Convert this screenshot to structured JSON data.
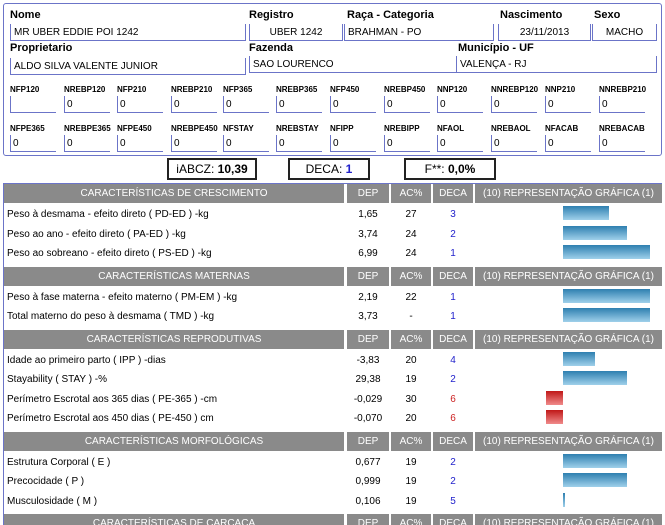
{
  "animal": {
    "nome_label": "Nome",
    "nome": "MR UBER EDDIE POI 1242",
    "registro_label": "Registro",
    "registro": "UBER 1242",
    "raca_label": "Raça - Categoria",
    "raca": "BRAHMAN - PO",
    "nascimento_label": "Nascimento",
    "nascimento": "23/11/2013",
    "sexo_label": "Sexo",
    "sexo": "MACHO",
    "proprietario_label": "Proprietario",
    "proprietario": "ALDO SILVA VALENTE JUNIOR",
    "fazenda_label": "Fazenda",
    "fazenda": "SAO LOURENCO",
    "municipio_label": "Município - UF",
    "municipio": "VALENÇA - RJ"
  },
  "nf_row1": [
    {
      "label": "NFP120",
      "value": ""
    },
    {
      "label": "NREBP120",
      "value": "0"
    },
    {
      "label": "NFP210",
      "value": "0"
    },
    {
      "label": "NREBP210",
      "value": "0"
    },
    {
      "label": "NFP365",
      "value": "0"
    },
    {
      "label": "NREBP365",
      "value": "0"
    },
    {
      "label": "NFP450",
      "value": "0"
    },
    {
      "label": "NREBP450",
      "value": "0"
    },
    {
      "label": "NNP120",
      "value": "0"
    },
    {
      "label": "NNREBP120",
      "value": "0"
    },
    {
      "label": "NNP210",
      "value": "0"
    },
    {
      "label": "NNREBP210",
      "value": "0"
    }
  ],
  "nf_row2": [
    {
      "label": "NFPE365",
      "value": "0"
    },
    {
      "label": "NREBPE365",
      "value": "0"
    },
    {
      "label": "NFPE450",
      "value": "0"
    },
    {
      "label": "NREBPE450",
      "value": "0"
    },
    {
      "label": "NFSTAY",
      "value": "0"
    },
    {
      "label": "NREBSTAY",
      "value": "0"
    },
    {
      "label": "NFIPP",
      "value": "0"
    },
    {
      "label": "NREBIPP",
      "value": "0"
    },
    {
      "label": "NFAOL",
      "value": "0"
    },
    {
      "label": "NREBAOL",
      "value": "0"
    },
    {
      "label": "NFACAB",
      "value": "0"
    },
    {
      "label": "NREBACAB",
      "value": "0"
    }
  ],
  "summary": {
    "iabcz_label": "iABCZ:",
    "iabcz": "10,39",
    "deca_label": "DECA:",
    "deca": "1",
    "f_label": "F**:",
    "f": "0,0%"
  },
  "columns": {
    "dep": "DEP",
    "ac": "AC%",
    "deca": "DECA",
    "graph": "(10) REPRESENTAÇÃO GRÁFICA (1)"
  },
  "sections": [
    {
      "title": "CARACTERÍSTICAS DE CRESCIMENTO",
      "rows": [
        {
          "name": "Peso à desmama - efeito direto ( PD-ED ) -kg",
          "dep": "1,65",
          "ac": "27",
          "deca": "3",
          "bar": 0.5
        },
        {
          "name": "Peso ao ano - efeito direto ( PA-ED ) -kg",
          "dep": "3,74",
          "ac": "24",
          "deca": "2",
          "bar": 0.7
        },
        {
          "name": "Peso ao sobreano - efeito direto ( PS-ED ) -kg",
          "dep": "6,99",
          "ac": "24",
          "deca": "1",
          "bar": 0.95
        }
      ]
    },
    {
      "title": "CARACTERÍSTICAS MATERNAS",
      "rows": [
        {
          "name": "Peso à fase materna - efeito materno ( PM-EM ) -kg",
          "dep": "2,19",
          "ac": "22",
          "deca": "1",
          "bar": 0.95
        },
        {
          "name": "Total materno do peso à desmama ( TMD ) -kg",
          "dep": "3,73",
          "ac": "-",
          "deca": "1",
          "bar": 0.95
        }
      ]
    },
    {
      "title": "CARACTERÍSTICAS REPRODUTIVAS",
      "rows": [
        {
          "name": "Idade ao primeiro parto ( IPP ) -dias",
          "dep": "-3,83",
          "ac": "20",
          "deca": "4",
          "bar": 0.35
        },
        {
          "name": "Stayability ( STAY ) -%",
          "dep": "29,38",
          "ac": "19",
          "deca": "2",
          "bar": 0.7
        },
        {
          "name": "Perímetro Escrotal aos 365 dias ( PE-365 ) -cm",
          "dep": "-0,029",
          "ac": "30",
          "deca": "6",
          "bar": -0.18
        },
        {
          "name": "Perímetro Escrotal aos 450 dias ( PE-450 ) cm",
          "dep": "-0,070",
          "ac": "20",
          "deca": "6",
          "bar": -0.18
        }
      ]
    },
    {
      "title": "CARACTERÍSTICAS MORFOLÓGICAS",
      "rows": [
        {
          "name": "Estrutura Corporal ( E )",
          "dep": "0,677",
          "ac": "19",
          "deca": "2",
          "bar": 0.7
        },
        {
          "name": "Precocidade ( P )",
          "dep": "0,999",
          "ac": "19",
          "deca": "2",
          "bar": 0.7
        },
        {
          "name": "Musculosidade ( M )",
          "dep": "0,106",
          "ac": "19",
          "deca": "5",
          "bar": 0.02
        }
      ]
    },
    {
      "title": "CARACTERÍSTICAS DE CARCAÇA",
      "rows": []
    }
  ]
}
